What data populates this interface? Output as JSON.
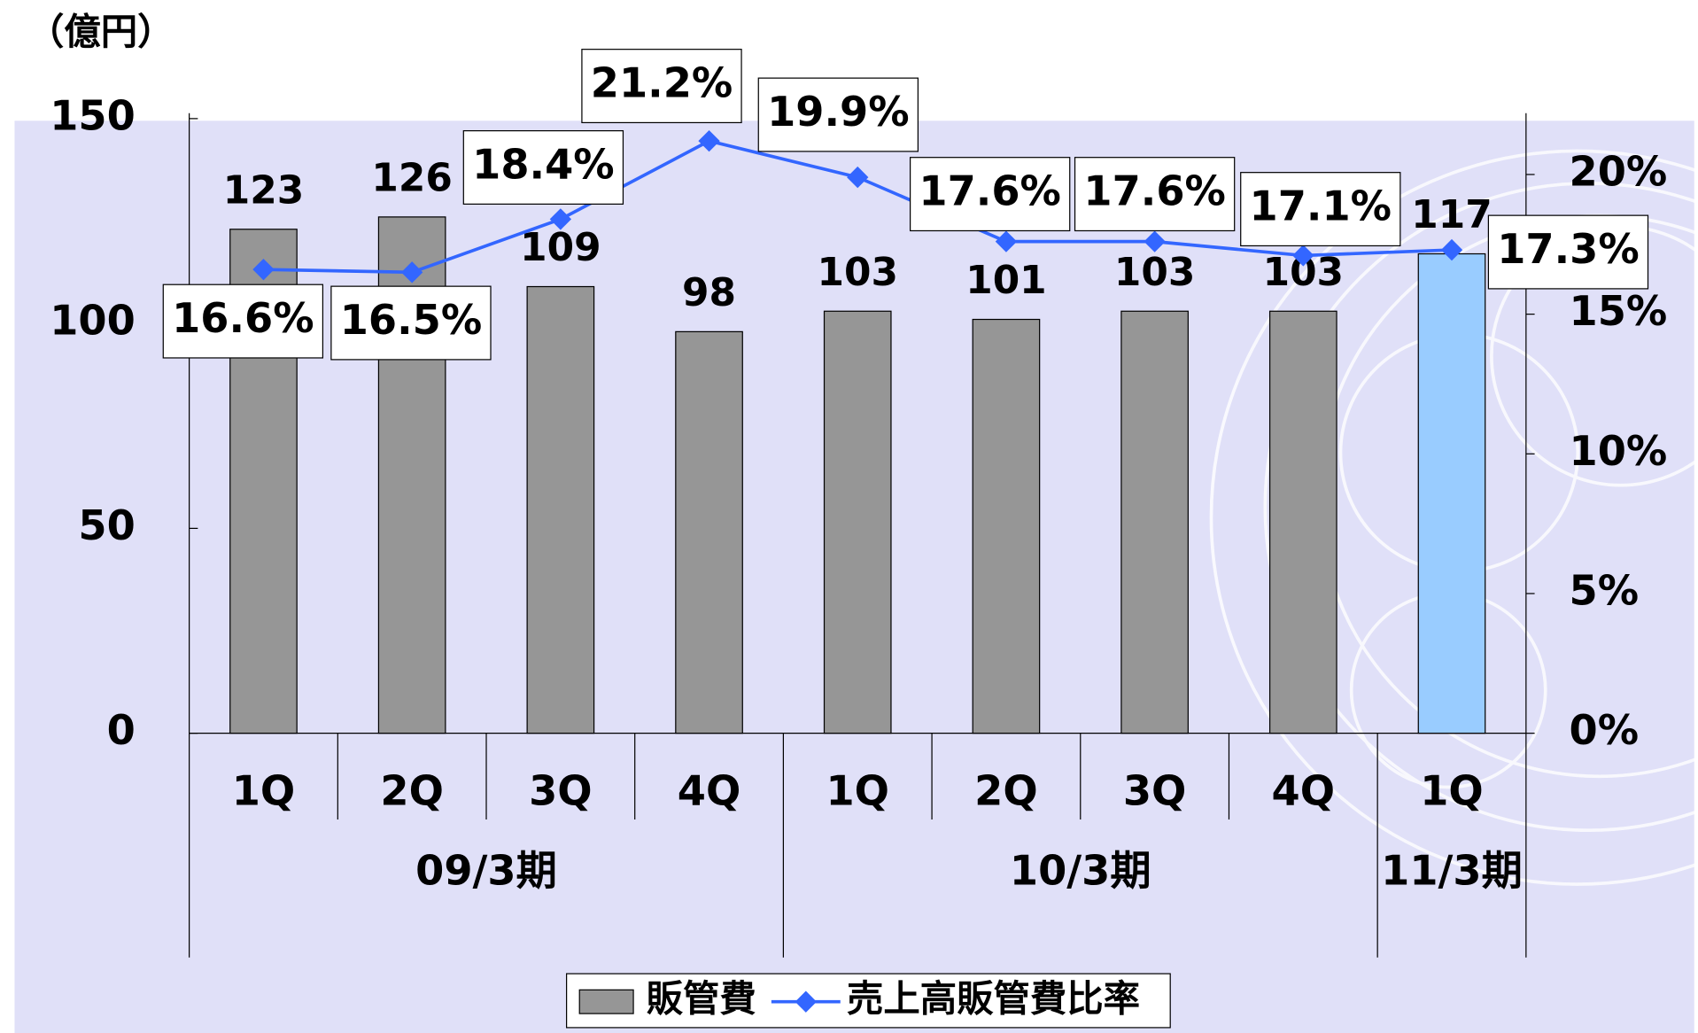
{
  "chart_data": {
    "type": "bar_line",
    "unit": "（億円）",
    "groups": [
      {
        "label": "09/3期",
        "categories": [
          "1Q",
          "2Q",
          "3Q",
          "4Q"
        ]
      },
      {
        "label": "10/3期",
        "categories": [
          "1Q",
          "2Q",
          "3Q",
          "4Q"
        ]
      },
      {
        "label": "11/3期",
        "categories": [
          "1Q"
        ]
      }
    ],
    "series": [
      {
        "name": "販管費",
        "type": "bar",
        "color": "#969696",
        "point_colors": [
          "#969696",
          "#969696",
          "#969696",
          "#969696",
          "#969696",
          "#969696",
          "#969696",
          "#969696",
          "#99ccff"
        ],
        "values": [
          123,
          126,
          109,
          98,
          103,
          101,
          103,
          103,
          117
        ]
      },
      {
        "name": "売上高販管費比率",
        "type": "line",
        "axis": "y2",
        "color": "#3366ff",
        "values": [
          16.6,
          16.5,
          18.4,
          21.2,
          19.9,
          17.6,
          17.6,
          17.1,
          17.3
        ],
        "value_labels": [
          "16.6%",
          "16.5%",
          "18.4%",
          "21.2%",
          "19.9%",
          "17.6%",
          "17.6%",
          "17.1%",
          "17.3%"
        ]
      }
    ],
    "ylim": [
      0,
      150
    ],
    "yticks": [
      0,
      50,
      100,
      150
    ],
    "y2lim": [
      0,
      22
    ],
    "y2ticks": [
      {
        "value": 0,
        "label": "0%"
      },
      {
        "value": 5,
        "label": "5%"
      },
      {
        "value": 10,
        "label": "10%"
      },
      {
        "value": 15,
        "label": "15%"
      },
      {
        "value": 20,
        "label": "20%"
      }
    ],
    "legend": "bottom"
  }
}
